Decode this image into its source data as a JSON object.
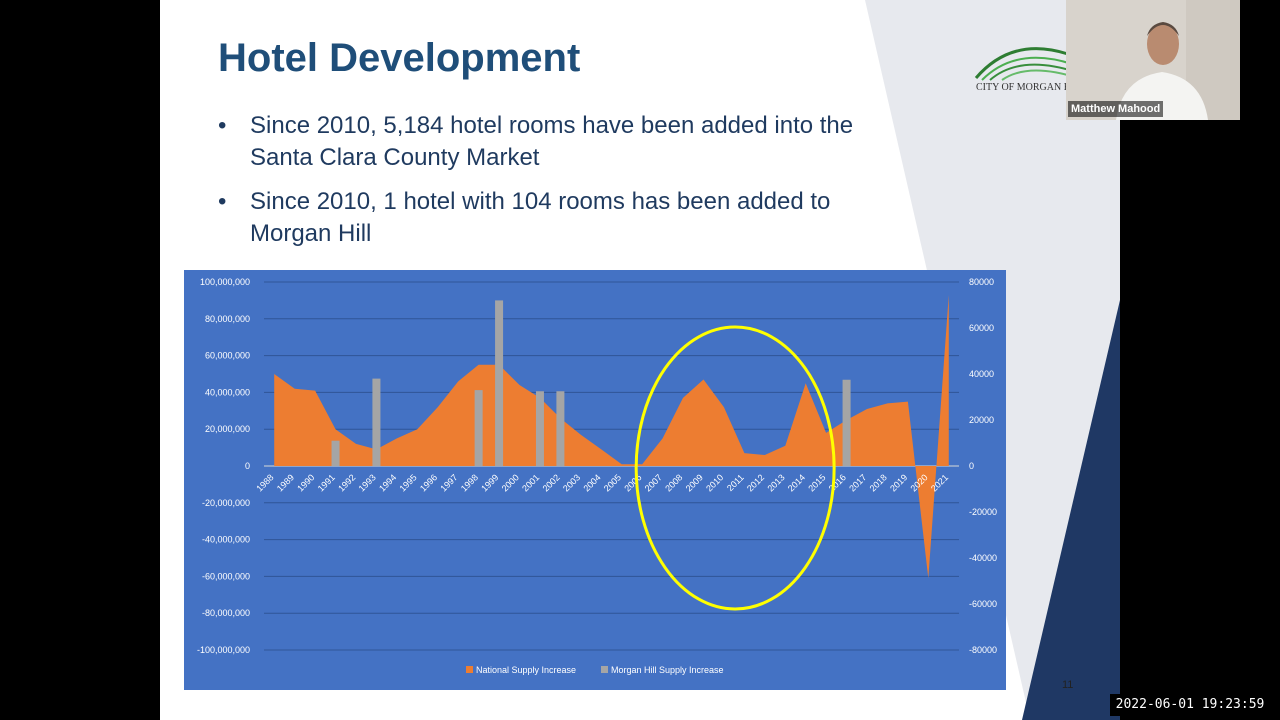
{
  "slide": {
    "title": "Hotel Development",
    "bullets": [
      {
        "marker": "•",
        "text": "Since 2010, 5,184 hotel rooms have been added into the Santa Clara County Market"
      },
      {
        "marker": "•",
        "text": "Since 2010, 1 hotel with 104 rooms has been added to Morgan Hill"
      }
    ],
    "logo_text": "CITY OF MORGAN HILL",
    "page_number": "11"
  },
  "video": {
    "participant_name": "Matthew Mahood"
  },
  "timestamp": "2022-06-01  19:23:59",
  "colors": {
    "title": "#1f4e79",
    "chart_background": "#4472c4",
    "national_series": "#ed7d31",
    "morgan_hill_series": "#a5a5a5",
    "highlight_ellipse": "#ffff00",
    "slide_decoration": "#1f3864"
  },
  "chart_data": {
    "type": "area",
    "title": "",
    "categories": [
      "1988",
      "1989",
      "1990",
      "1991",
      "1992",
      "1993",
      "1994",
      "1995",
      "1996",
      "1997",
      "1998",
      "1999",
      "2000",
      "2001",
      "2002",
      "2003",
      "2004",
      "2005",
      "2006",
      "2007",
      "2008",
      "2009",
      "2010",
      "2011",
      "2012",
      "2013",
      "2014",
      "2015",
      "2016",
      "2017",
      "2018",
      "2019",
      "2020",
      "2021"
    ],
    "series": [
      {
        "name": "National Supply Increase",
        "chart": "area",
        "axis": "left",
        "values": [
          50000000,
          42000000,
          41000000,
          20000000,
          12000000,
          9000000,
          15000000,
          20000000,
          32000000,
          46000000,
          55000000,
          55000000,
          44000000,
          37000000,
          26000000,
          17000000,
          9000000,
          1000000,
          1000000,
          15000000,
          37000000,
          47000000,
          32000000,
          7000000,
          6000000,
          11000000,
          45000000,
          18000000,
          25000000,
          31000000,
          34000000,
          35000000,
          -61000000,
          93000000
        ]
      },
      {
        "name": "Morgan Hill Supply Increase",
        "chart": "bar",
        "axis": "right",
        "values": [
          0,
          0,
          0,
          11000,
          0,
          38000,
          0,
          0,
          0,
          0,
          33000,
          72000,
          0,
          32500,
          32500,
          0,
          0,
          0,
          0,
          0,
          0,
          0,
          0,
          0,
          0,
          0,
          0,
          0,
          37500,
          0,
          0,
          0,
          0,
          0
        ]
      }
    ],
    "y_left": {
      "min": -100000000,
      "max": 100000000,
      "ticks": [
        "100,000,000",
        "80,000,000",
        "60,000,000",
        "40,000,000",
        "20,000,000",
        "0",
        "-20,000,000",
        "-40,000,000",
        "-60,000,000",
        "-80,000,000",
        "-100,000,000"
      ]
    },
    "y_right": {
      "min": -80000,
      "max": 80000,
      "ticks": [
        "80000",
        "60000",
        "40000",
        "20000",
        "0",
        "-20000",
        "-40000",
        "-60000",
        "-80000"
      ]
    },
    "grid": true,
    "legend_position": "bottom",
    "highlight": {
      "shape": "ellipse",
      "from_category": "2006",
      "to_category": "2015"
    }
  }
}
